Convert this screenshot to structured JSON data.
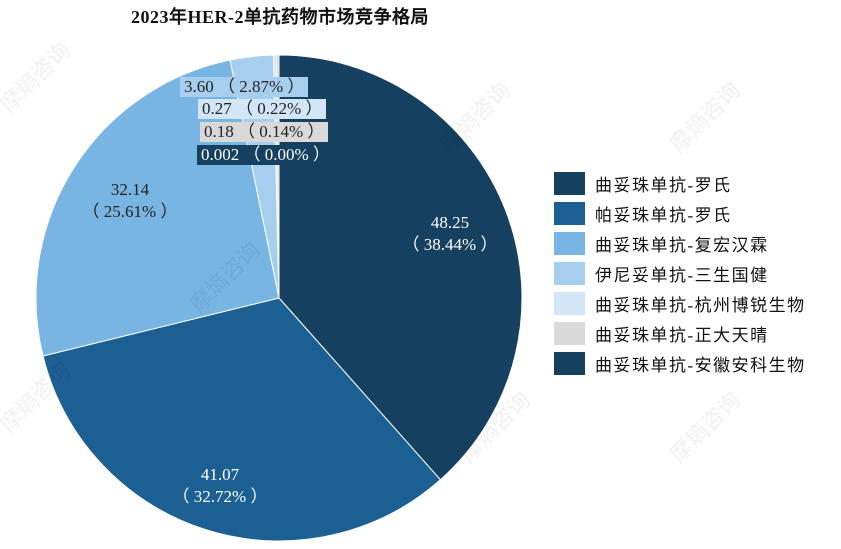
{
  "chart_data": {
    "type": "pie",
    "title": "2023年HER-2单抗药物市场竞争格局",
    "unit": "",
    "slices": [
      {
        "name": "曲妥珠单抗-罗氏",
        "value": 48.25,
        "percent": "38.44%",
        "value_label": "48.25",
        "percent_label": "（ 38.44% ）",
        "color": "#15405f"
      },
      {
        "name": "帕妥珠单抗-罗氏",
        "value": 41.07,
        "percent": "32.72%",
        "value_label": "41.07",
        "percent_label": "（ 32.72% ）",
        "color": "#1b5f93"
      },
      {
        "name": "曲妥珠单抗-复宏汉霖",
        "value": 32.14,
        "percent": "25.61%",
        "value_label": "32.14",
        "percent_label": "（ 25.61% ）",
        "color": "#78b5e2"
      },
      {
        "name": "伊尼妥单抗-三生国健",
        "value": 3.6,
        "percent": "2.87%",
        "value_label": "3.60",
        "percent_label": "3.60 （ 2.87% ）",
        "color": "#a6cfee"
      },
      {
        "name": "曲妥珠单抗-杭州博锐生物",
        "value": 0.27,
        "percent": "0.22%",
        "value_label": "0.27",
        "percent_label": "0.27 （ 0.22% ）",
        "color": "#d2e6f7"
      },
      {
        "name": "曲妥珠单抗-正大天晴",
        "value": 0.18,
        "percent": "0.14%",
        "value_label": "0.18",
        "percent_label": "0.18 （ 0.14% ）",
        "color": "#d9d9d9"
      },
      {
        "name": "曲妥珠单抗-安徽安科生物",
        "value": 0.002,
        "percent": "0.00%",
        "value_label": "0.002",
        "percent_label": "0.002 （ 0.00% ）",
        "color": "#15405f"
      }
    ],
    "start_angle": "12 o'clock",
    "direction": "clockwise",
    "legend_position": "right"
  },
  "watermark": "摩熵咨询"
}
